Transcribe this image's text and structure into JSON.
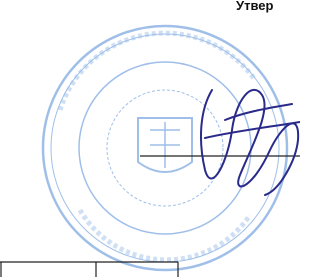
{
  "header": {
    "title": "Утвер"
  }
}
